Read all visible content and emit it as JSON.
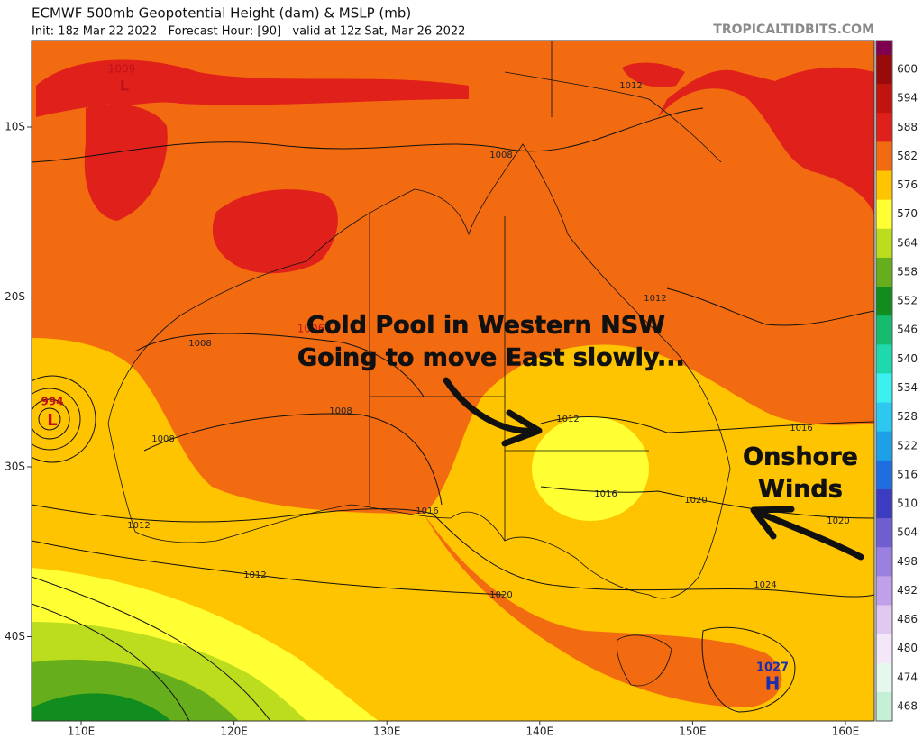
{
  "header": {
    "title": "ECMWF 500mb Geopotential Height (dam) & MSLP (mb)",
    "subtitle": "Init: 18z Mar 22 2022   Forecast Hour: [90]   valid at 12z Sat, Mar 26 2022",
    "site": "TROPICALTIDBITS.COM"
  },
  "map": {
    "lat_labels": [
      "10S",
      "20S",
      "30S",
      "40S"
    ],
    "lon_labels": [
      "110E",
      "120E",
      "130E",
      "140E",
      "150E",
      "160E"
    ],
    "isobar_labels": [
      "1009",
      "1012",
      "1008",
      "1012",
      "1008",
      "1008",
      "1008",
      "1012",
      "1016",
      "1016",
      "1020",
      "1020",
      "1016",
      "1012",
      "1012",
      "1020",
      "1024",
      "1006"
    ],
    "centers": [
      {
        "value": "994",
        "symbol": "L"
      },
      {
        "value": "1027",
        "symbol": "H"
      },
      {
        "value": "1009",
        "symbol": "L"
      }
    ],
    "annotations": [
      "Cold Pool in Western NSW",
      "Going to move East slowly...",
      "Onshore",
      "Winds"
    ]
  },
  "colorbar": {
    "levels": [
      {
        "value": 600,
        "color": "#9b0a0a"
      },
      {
        "value": 594,
        "color": "#c0140e"
      },
      {
        "value": 588,
        "color": "#e0201a"
      },
      {
        "value": 582,
        "color": "#f26b10"
      },
      {
        "value": 576,
        "color": "#ffc400"
      },
      {
        "value": 570,
        "color": "#ffff33"
      },
      {
        "value": 564,
        "color": "#bcdc1e"
      },
      {
        "value": 558,
        "color": "#66ae1c"
      },
      {
        "value": 552,
        "color": "#118c1e"
      },
      {
        "value": 546,
        "color": "#16bc6e"
      },
      {
        "value": 540,
        "color": "#1ed8ae"
      },
      {
        "value": 534,
        "color": "#3cf0f0"
      },
      {
        "value": 528,
        "color": "#2cc8f0"
      },
      {
        "value": 522,
        "color": "#1ea0e8"
      },
      {
        "value": 516,
        "color": "#1e6ee0"
      },
      {
        "value": 510,
        "color": "#3c3cc0"
      },
      {
        "value": 504,
        "color": "#6e5ed0"
      },
      {
        "value": 498,
        "color": "#9a80e0"
      },
      {
        "value": 492,
        "color": "#c0a0e8"
      },
      {
        "value": 486,
        "color": "#e0c8f0"
      },
      {
        "value": 480,
        "color": "#f4e8f8"
      },
      {
        "value": 474,
        "color": "#e6f8ee"
      },
      {
        "value": 468,
        "color": "#c6f0d6"
      }
    ]
  }
}
